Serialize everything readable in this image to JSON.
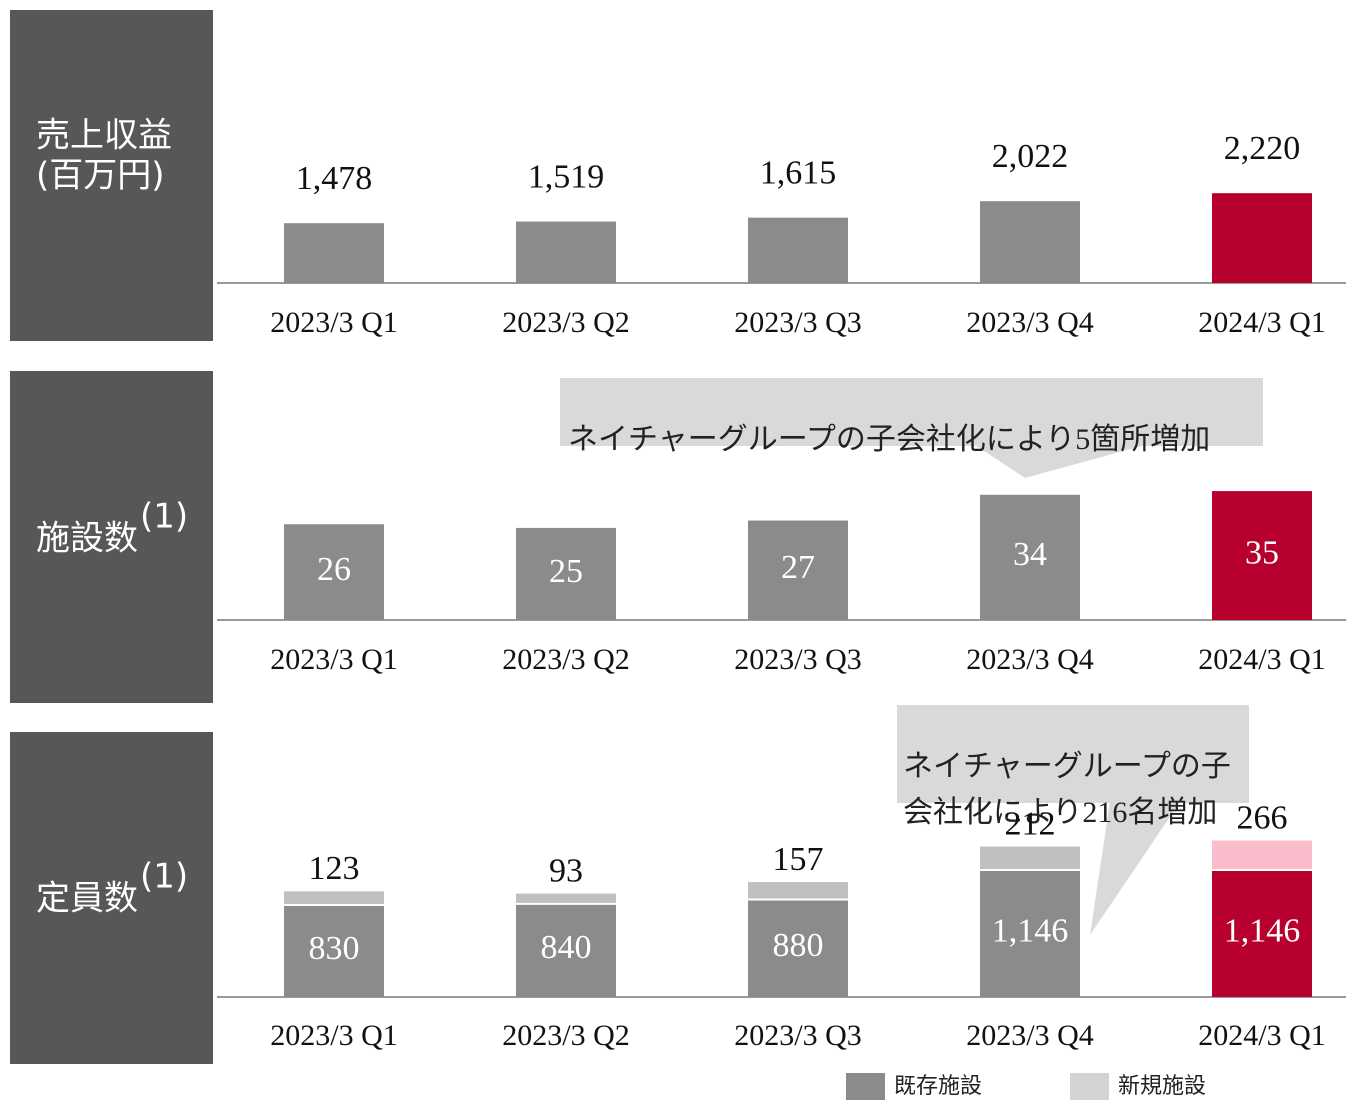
{
  "chart_data": [
    {
      "type": "bar",
      "title": [
        "売上収益",
        "(百万円)"
      ],
      "categories": [
        "2023/3 Q1",
        "2023/3 Q2",
        "2023/3 Q3",
        "2023/3 Q4",
        "2024/3 Q1"
      ],
      "values": [
        1478,
        1519,
        1615,
        2022,
        2220
      ],
      "value_labels": [
        "1,478",
        "1,519",
        "1,615",
        "2,022",
        "2,220"
      ],
      "colors": [
        "#898b8d",
        "#898b8d",
        "#898b8d",
        "#898b8d",
        "#b8002e"
      ],
      "ylim": [
        0,
        6500
      ]
    },
    {
      "type": "bar",
      "title": [
        "施設数"
      ],
      "title_note": "(1)",
      "categories": [
        "2023/3 Q1",
        "2023/3 Q2",
        "2023/3 Q3",
        "2023/3 Q4",
        "2024/3 Q1"
      ],
      "values": [
        26,
        25,
        27,
        34,
        35
      ],
      "colors": [
        "#898b8d",
        "#898b8d",
        "#898b8d",
        "#898b8d",
        "#b8002e"
      ],
      "labels_inside": true,
      "annotation": [
        "ネイチャーグループの子会社化により5箇所増加"
      ],
      "ylim": [
        0,
        60
      ]
    },
    {
      "type": "stacked_bar",
      "title": [
        "定員数"
      ],
      "title_note": "(1)",
      "categories": [
        "2023/3 Q1",
        "2023/3 Q2",
        "2023/3 Q3",
        "2023/3 Q4",
        "2024/3 Q1"
      ],
      "series": [
        {
          "name": "既存施設",
          "color": "#898b8d",
          "colors": [
            "#898b8d",
            "#898b8d",
            "#898b8d",
            "#898b8d",
            "#b8002e"
          ],
          "values": [
            830,
            840,
            880,
            1146,
            1146
          ],
          "value_labels": [
            "830",
            "840",
            "880",
            "1,146",
            "1,146"
          ]
        },
        {
          "name": "新規施設",
          "color": "#d3d3d3",
          "colors": [
            "#c0c0c0",
            "#c0c0c0",
            "#c0c0c0",
            "#c0c0c0",
            "#f9bccb"
          ],
          "values": [
            123,
            93,
            157,
            212,
            266
          ]
        }
      ],
      "annotation": [
        "ネイチャーグループの子",
        "会社化により216名増加"
      ],
      "ylim": [
        0,
        2400
      ]
    }
  ]
}
